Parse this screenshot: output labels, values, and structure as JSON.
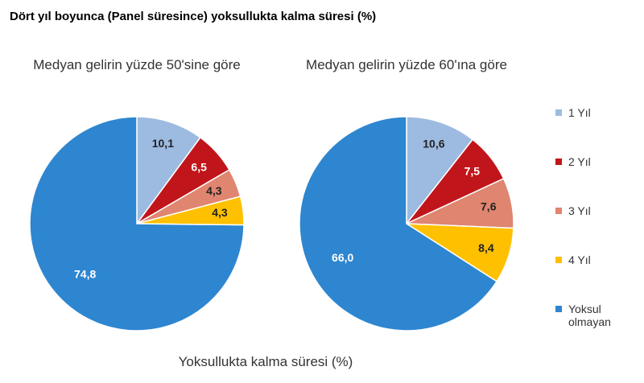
{
  "title": "Dört yıl boyunca (Panel süresince) yoksullukta kalma süresi (%)",
  "axis_label": "Yoksullukta kalma süresi (%)",
  "chart_data": [
    {
      "type": "pie",
      "title": "Medyan gelirin yüzde 50'sine göre",
      "categories": [
        "1 Yıl",
        "2 Yıl",
        "3 Yıl",
        "4 Yıl",
        "Yoksul olmayan"
      ],
      "values": [
        10.1,
        6.5,
        4.3,
        4.3,
        74.8
      ],
      "value_labels": [
        "10,1",
        "6,5",
        "4,3",
        "4,3",
        "74,8"
      ],
      "colors": [
        "#9dbbe0",
        "#c0161b",
        "#e0856f",
        "#ffc000",
        "#2e86d0"
      ]
    },
    {
      "type": "pie",
      "title": "Medyan gelirin yüzde 60'ına göre",
      "categories": [
        "1 Yıl",
        "2 Yıl",
        "3 Yıl",
        "4 Yıl",
        "Yoksul olmayan"
      ],
      "values": [
        10.6,
        7.5,
        7.6,
        8.4,
        66.0
      ],
      "value_labels": [
        "10,6",
        "7,5",
        "7,6",
        "8,4",
        "66,0"
      ],
      "colors": [
        "#9dbbe0",
        "#c0161b",
        "#e0856f",
        "#ffc000",
        "#2e86d0"
      ]
    }
  ]
}
